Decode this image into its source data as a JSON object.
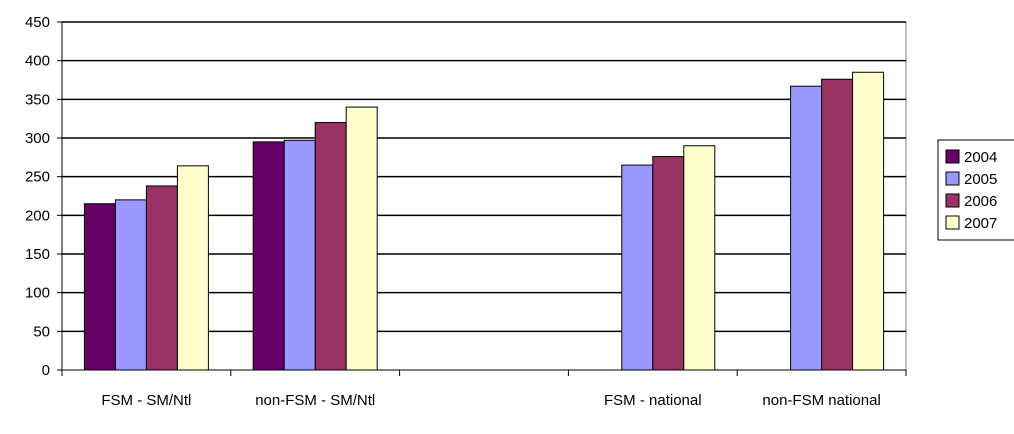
{
  "chart_data": {
    "type": "bar",
    "categories": [
      "FSM - SM/Ntl",
      "non-FSM - SM/Ntl",
      "",
      "FSM - national",
      "non-FSM national"
    ],
    "series": [
      {
        "name": "2004",
        "color": "#660066",
        "values": [
          215,
          295,
          null,
          null,
          null
        ]
      },
      {
        "name": "2005",
        "color": "#9999ff",
        "values": [
          220,
          297,
          null,
          265,
          367
        ]
      },
      {
        "name": "2006",
        "color": "#993366",
        "values": [
          238,
          320,
          null,
          276,
          376
        ]
      },
      {
        "name": "2007",
        "color": "#ffffcc",
        "values": [
          264,
          340,
          null,
          290,
          385
        ]
      }
    ],
    "yticks": [
      "0",
      "50",
      "100",
      "150",
      "200",
      "250",
      "300",
      "350",
      "400",
      "450"
    ],
    "ylim": [
      0,
      450
    ],
    "grid": true,
    "legend_position": "right"
  }
}
